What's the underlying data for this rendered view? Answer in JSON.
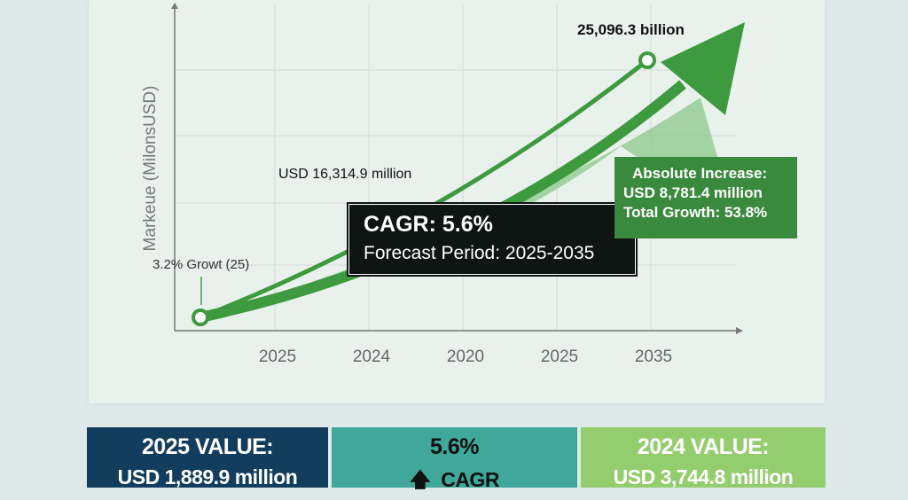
{
  "chart_data": {
    "type": "line",
    "title": "",
    "ylabel": "Markeue (MilonsUSD)",
    "xlabel": "",
    "categories": [
      "2025",
      "2024",
      "2020",
      "2025",
      "2035"
    ],
    "grid": true,
    "annotations": {
      "start": "3.2% Growt (25)",
      "mid": "USD 16,314.9 million",
      "end": "25,096.3 billion"
    },
    "colors": {
      "line": "#3d9a3f",
      "band": "#7cbf78",
      "arrow": "#3d9a3f"
    }
  },
  "cagr_box": {
    "title": "CAGR: 5.6%",
    "subtitle": "Forecast Period: 2025-2035"
  },
  "increase_box": {
    "line1": "Absolute Increase:",
    "line2": "USD 8,781.4 million",
    "line3": "Total Growth: 53.8%"
  },
  "cards": [
    {
      "label": "2025 VALUE:",
      "value": "USD 1,889.9 million",
      "color": "#123d5c"
    },
    {
      "label": "5.6%",
      "value": "CAGR",
      "icon": "arrow-up-icon",
      "color": "#3fa89b"
    },
    {
      "label": "2024 VALUE:",
      "value": "USD 3,744.8 million",
      "color": "#94cd6e"
    }
  ]
}
